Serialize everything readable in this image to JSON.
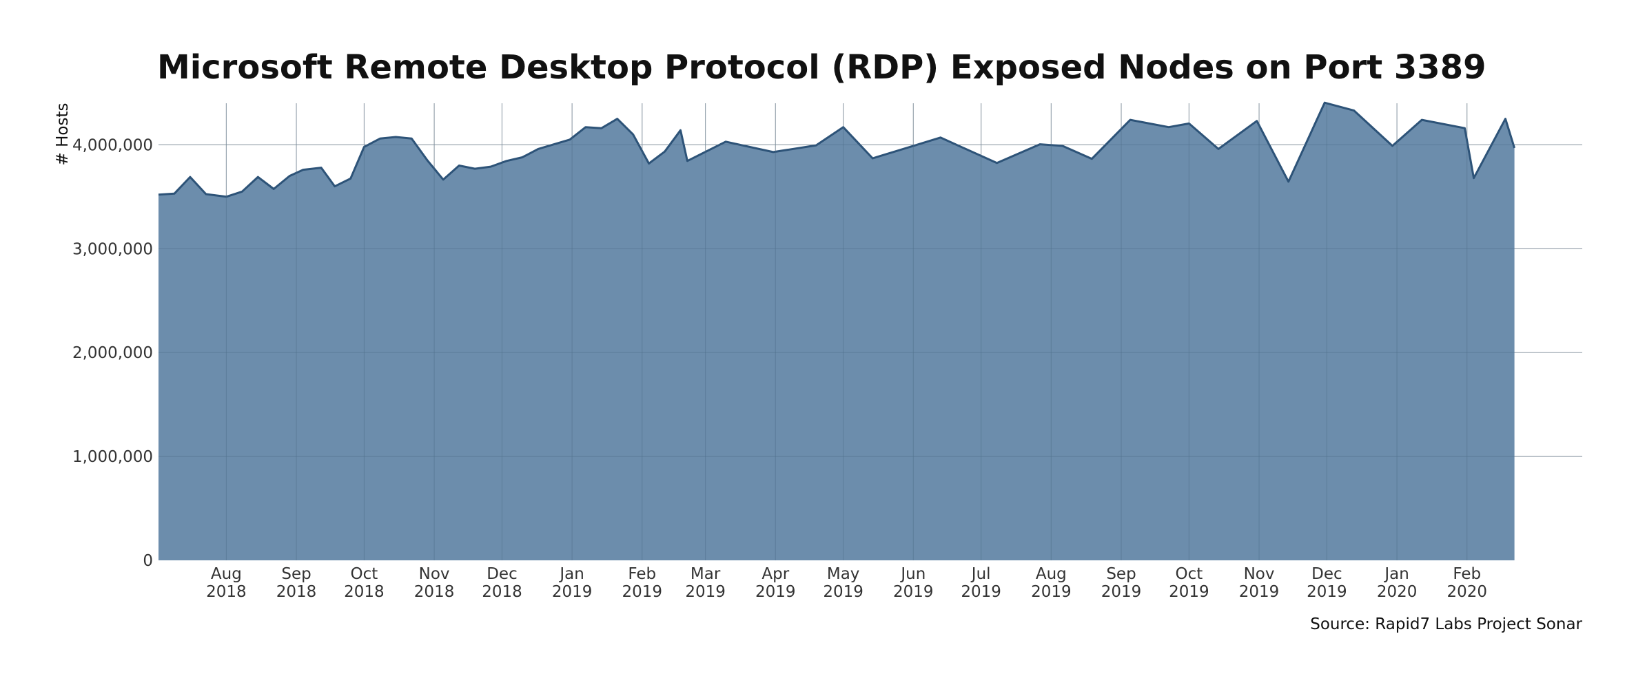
{
  "chart_data": {
    "type": "area",
    "title": "Microsoft Remote Desktop Protocol (RDP) Exposed Nodes on Port 3389",
    "ylabel": "# Hosts",
    "xlabel": "",
    "source": "Source: Rapid7 Labs Project Sonar",
    "xlim": [
      "2018-07-02",
      "2020-03-23"
    ],
    "ylim": [
      0,
      4400000
    ],
    "grid": true,
    "fill_color": "#6487a8",
    "line_color": "#2d5378",
    "y_ticks": [
      {
        "value": 0,
        "label": "0"
      },
      {
        "value": 1000000,
        "label": "1,000,000"
      },
      {
        "value": 2000000,
        "label": "2,000,000"
      },
      {
        "value": 3000000,
        "label": "3,000,000"
      },
      {
        "value": 4000000,
        "label": "4,000,000"
      }
    ],
    "x_ticks": [
      {
        "date": "2018-08-01",
        "month": "Aug",
        "year": "2018"
      },
      {
        "date": "2018-09-01",
        "month": "Sep",
        "year": "2018"
      },
      {
        "date": "2018-10-01",
        "month": "Oct",
        "year": "2018"
      },
      {
        "date": "2018-11-01",
        "month": "Nov",
        "year": "2018"
      },
      {
        "date": "2018-12-01",
        "month": "Dec",
        "year": "2018"
      },
      {
        "date": "2019-01-01",
        "month": "Jan",
        "year": "2019"
      },
      {
        "date": "2019-02-01",
        "month": "Feb",
        "year": "2019"
      },
      {
        "date": "2019-03-01",
        "month": "Mar",
        "year": "2019"
      },
      {
        "date": "2019-04-01",
        "month": "Apr",
        "year": "2019"
      },
      {
        "date": "2019-05-01",
        "month": "May",
        "year": "2019"
      },
      {
        "date": "2019-06-01",
        "month": "Jun",
        "year": "2019"
      },
      {
        "date": "2019-07-01",
        "month": "Jul",
        "year": "2019"
      },
      {
        "date": "2019-08-01",
        "month": "Aug",
        "year": "2019"
      },
      {
        "date": "2019-09-01",
        "month": "Sep",
        "year": "2019"
      },
      {
        "date": "2019-10-01",
        "month": "Oct",
        "year": "2019"
      },
      {
        "date": "2019-11-01",
        "month": "Nov",
        "year": "2019"
      },
      {
        "date": "2019-12-01",
        "month": "Dec",
        "year": "2019"
      },
      {
        "date": "2020-01-01",
        "month": "Jan",
        "year": "2020"
      },
      {
        "date": "2020-02-01",
        "month": "Feb",
        "year": "2020"
      }
    ],
    "series": [
      {
        "x": [
          "2018-07-02",
          "2018-07-09",
          "2018-07-16",
          "2018-07-23",
          "2018-08-01",
          "2018-08-08",
          "2018-08-15",
          "2018-08-22",
          "2018-08-29",
          "2018-09-04",
          "2018-09-12",
          "2018-09-18",
          "2018-09-25",
          "2018-10-01",
          "2018-10-08",
          "2018-10-15",
          "2018-10-22",
          "2018-10-29",
          "2018-11-05",
          "2018-11-12",
          "2018-11-19",
          "2018-11-26",
          "2018-12-03",
          "2018-12-10",
          "2018-12-17",
          "2018-12-31",
          "2019-01-07",
          "2019-01-14",
          "2019-01-21",
          "2019-01-28",
          "2019-02-04",
          "2019-02-11",
          "2019-02-18",
          "2019-02-21",
          "2019-03-10",
          "2019-03-31",
          "2019-04-19",
          "2019-05-01",
          "2019-05-14",
          "2019-06-01",
          "2019-06-13",
          "2019-07-08",
          "2019-07-27",
          "2019-08-06",
          "2019-08-19",
          "2019-09-05",
          "2019-09-22",
          "2019-10-01",
          "2019-10-14",
          "2019-10-31",
          "2019-11-14",
          "2019-11-30",
          "2019-12-13",
          "2019-12-30",
          "2020-01-12",
          "2020-01-31",
          "2020-02-04",
          "2020-02-18",
          "2020-02-22"
        ],
        "values": [
          3520000,
          3530000,
          3690000,
          3525000,
          3500000,
          3550000,
          3690000,
          3575000,
          3700000,
          3760000,
          3780000,
          3600000,
          3675000,
          3980000,
          4060000,
          4075000,
          4060000,
          3850000,
          3665000,
          3800000,
          3770000,
          3790000,
          3845000,
          3880000,
          3960000,
          4050000,
          4170000,
          4160000,
          4250000,
          4100000,
          3820000,
          3935000,
          4140000,
          3845000,
          4030000,
          3930000,
          3995000,
          4170000,
          3870000,
          3990000,
          4070000,
          3825000,
          4005000,
          3990000,
          3865000,
          4240000,
          4170000,
          4205000,
          3960000,
          4230000,
          3645000,
          4405000,
          4330000,
          3990000,
          4240000,
          4160000,
          3680000,
          4250000,
          3970000
        ]
      }
    ]
  }
}
